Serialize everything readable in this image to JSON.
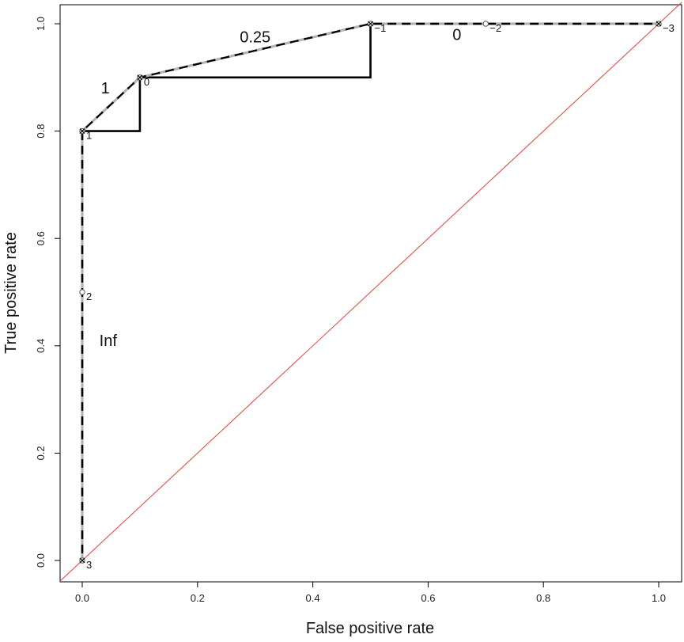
{
  "chart_data": {
    "type": "line",
    "title": "",
    "xlabel": "False positive rate",
    "ylabel": "True positive rate",
    "xlim": [
      0,
      1
    ],
    "ylim": [
      0,
      1
    ],
    "xticks": [
      "0.0",
      "0.2",
      "0.4",
      "0.6",
      "0.8",
      "1.0"
    ],
    "yticks": [
      "0.0",
      "0.2",
      "0.4",
      "0.6",
      "0.8",
      "1.0"
    ],
    "grid": false,
    "series": [
      {
        "style": "solid",
        "color": "#000000",
        "x": [
          0,
          0,
          0.1,
          0.1,
          0.5,
          0.5,
          1.0
        ],
        "y": [
          0,
          0.8,
          0.8,
          0.9,
          0.9,
          1.0,
          1.0
        ]
      },
      {
        "style": "dashed",
        "color": "#b3b3b3",
        "x": [
          0,
          0,
          0.1,
          0.5,
          0.7,
          1.0
        ],
        "y": [
          0,
          0.8,
          0.9,
          1.0,
          1.0,
          1.0
        ]
      },
      {
        "style": "dashed",
        "color": "#000000",
        "x": [
          0,
          0,
          0.1,
          0.5,
          0.7,
          1.0
        ],
        "y": [
          0,
          0.8,
          0.9,
          1.0,
          1.0,
          1.0
        ]
      },
      {
        "style": "diagonal",
        "color": "#e8413b",
        "x": [
          0,
          1
        ],
        "y": [
          0,
          1
        ]
      }
    ],
    "points": [
      {
        "x": 0.0,
        "y": 0.0,
        "label": "3",
        "marker": "cross"
      },
      {
        "x": 0.0,
        "y": 0.5,
        "label": "2",
        "marker": "circle"
      },
      {
        "x": 0.0,
        "y": 0.8,
        "label": "1",
        "marker": "cross"
      },
      {
        "x": 0.1,
        "y": 0.9,
        "label": "0",
        "marker": "cross"
      },
      {
        "x": 0.5,
        "y": 1.0,
        "label": "−1",
        "marker": "cross"
      },
      {
        "x": 0.7,
        "y": 1.0,
        "label": "−2",
        "marker": "circle"
      },
      {
        "x": 1.0,
        "y": 1.0,
        "label": "−3",
        "marker": "cross"
      }
    ],
    "annotations": [
      {
        "text": "Inf",
        "x": 0.045,
        "y": 0.4
      },
      {
        "text": "1",
        "x": 0.04,
        "y": 0.87
      },
      {
        "text": "0.25",
        "x": 0.3,
        "y": 0.965
      },
      {
        "text": "0",
        "x": 0.65,
        "y": 0.97
      }
    ]
  }
}
